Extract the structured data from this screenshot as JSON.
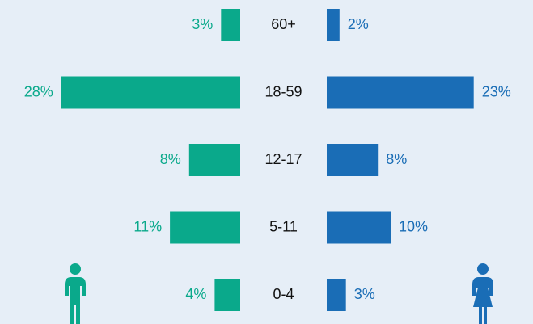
{
  "chart_data": {
    "type": "pyramid",
    "categories": [
      "60+",
      "18-59",
      "12-17",
      "5-11",
      "0-4"
    ],
    "series": [
      {
        "color": "#0aa98b",
        "values": [
          3,
          28,
          8,
          11,
          4
        ],
        "value_labels": [
          "3%",
          "28%",
          "8%",
          "11%",
          "4%"
        ]
      },
      {
        "color": "#1a6db6",
        "values": [
          2,
          23,
          8,
          10,
          3
        ],
        "value_labels": [
          "2%",
          "23%",
          "8%",
          "10%",
          "3%"
        ]
      }
    ]
  }
}
